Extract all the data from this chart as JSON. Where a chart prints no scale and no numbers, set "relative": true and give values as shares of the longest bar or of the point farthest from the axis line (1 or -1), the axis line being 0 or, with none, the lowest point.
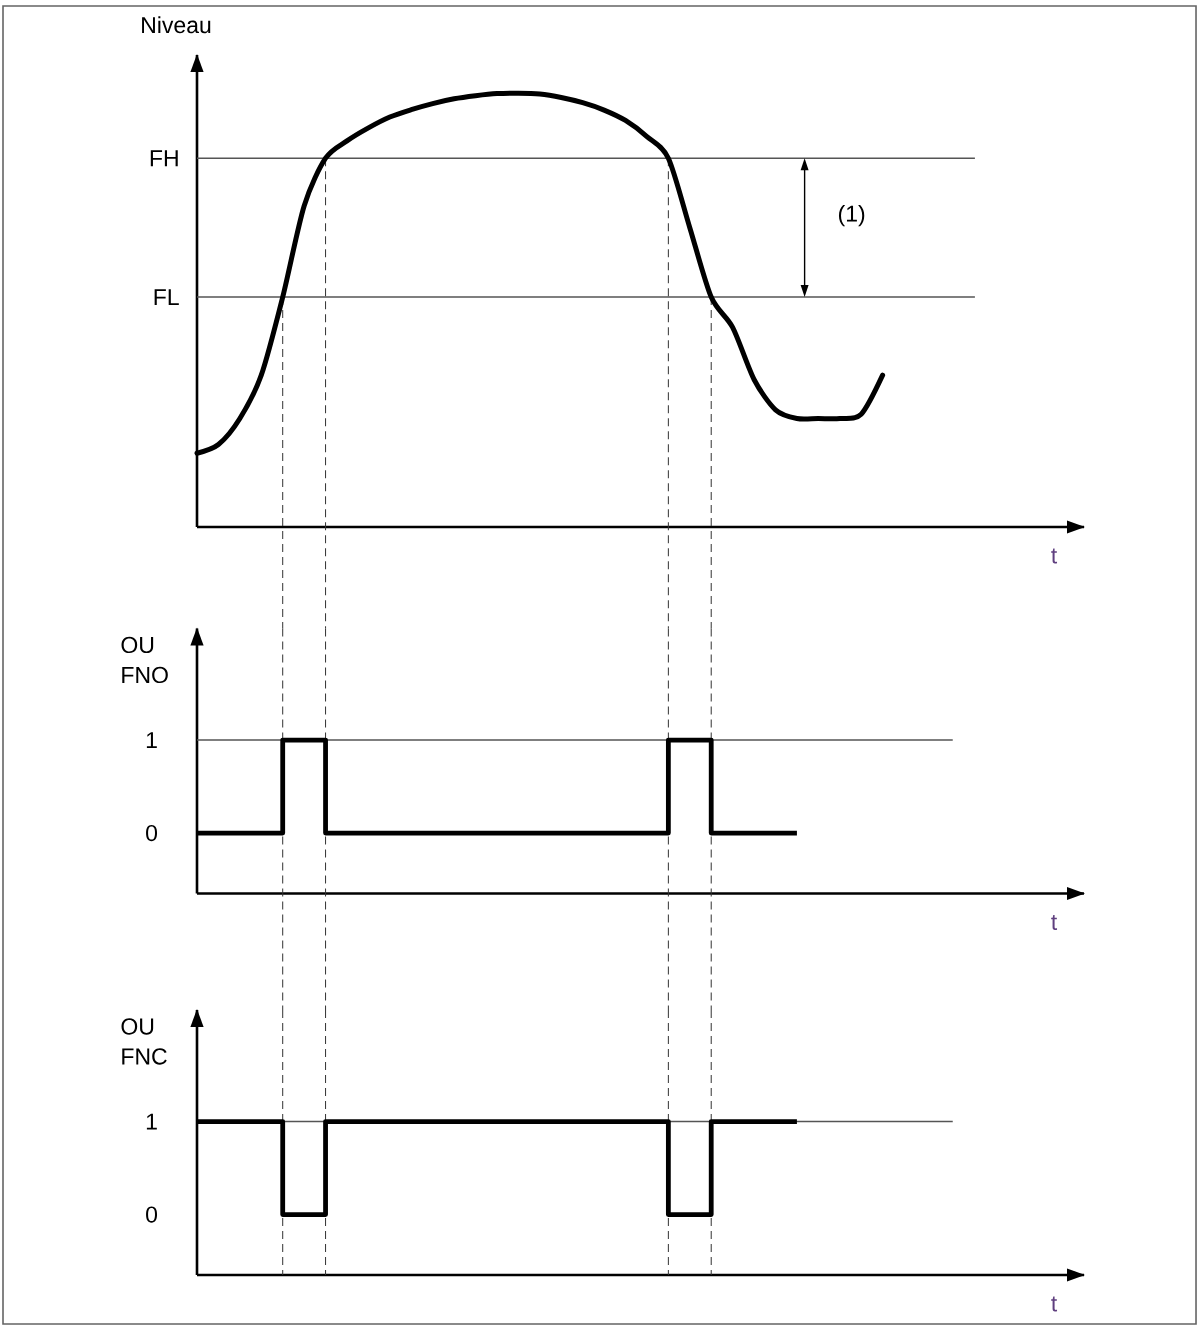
{
  "chart_data": [
    {
      "type": "line",
      "ylabel": "Niveau",
      "xlabel": "t",
      "relative": true,
      "color": "#000000",
      "grid": "x",
      "categories": [
        null,
        null,
        null,
        null,
        null,
        null,
        null,
        null,
        null,
        null,
        null,
        null,
        null,
        null,
        null,
        null,
        null,
        null,
        null,
        null,
        null,
        null,
        null,
        null,
        null,
        null,
        null,
        null,
        null,
        null,
        null,
        null,
        null,
        null,
        null,
        null,
        null,
        null,
        null,
        null,
        null,
        null
      ],
      "values": [
        0.17,
        0.19,
        0.25,
        0.35,
        0.53,
        0.74,
        0.85,
        0.89,
        0.92,
        0.945,
        0.962,
        0.976,
        0.987,
        0.994,
        0.999,
        1.0,
        0.998,
        0.99,
        0.978,
        0.961,
        0.937,
        0.9,
        0.85,
        0.69,
        0.53,
        0.46,
        0.34,
        0.27,
        0.25,
        0.25,
        0.25,
        0.26,
        0.35,
        null,
        null,
        null,
        null,
        null,
        null,
        null,
        null,
        null
      ],
      "ref_lines": [
        {
          "axis": "y",
          "value": 0.85,
          "label": "FH",
          "color": "#555555"
        },
        {
          "axis": "y",
          "value": 0.53,
          "label": "FL",
          "color": "#555555"
        }
      ],
      "annotations": [
        "(1)"
      ]
    },
    {
      "type": "step",
      "ylabel": "OU FNO",
      "xlabel": "t",
      "color": "#000000",
      "ylim": [
        -0.65,
        2.2
      ],
      "yticks": [
        0,
        1
      ],
      "grid": "x",
      "categories": [
        null,
        null,
        null,
        null,
        null,
        null,
        null,
        null,
        null,
        null,
        null,
        null,
        null,
        null,
        null,
        null,
        null,
        null,
        null,
        null,
        null,
        null,
        null,
        null,
        null,
        null,
        null,
        null,
        null,
        null,
        null,
        null,
        null,
        null,
        null,
        null,
        null,
        null,
        null,
        null,
        null,
        null
      ],
      "values": [
        0,
        0,
        0,
        0,
        1,
        1,
        0,
        0,
        0,
        0,
        0,
        0,
        0,
        0,
        0,
        0,
        0,
        0,
        0,
        0,
        0,
        0,
        1,
        1,
        0,
        0,
        0,
        0,
        0,
        null,
        null,
        null,
        null,
        null,
        null,
        null,
        null,
        null,
        null,
        null,
        null,
        null
      ],
      "ref_lines": [
        {
          "axis": "y",
          "value": 1,
          "color": "#555555"
        }
      ]
    },
    {
      "type": "step",
      "ylabel": "OU FNC",
      "xlabel": "t",
      "color": "#000000",
      "ylim": [
        -0.65,
        2.2
      ],
      "yticks": [
        0,
        1
      ],
      "grid": "x",
      "categories": [
        null,
        null,
        null,
        null,
        null,
        null,
        null,
        null,
        null,
        null,
        null,
        null,
        null,
        null,
        null,
        null,
        null,
        null,
        null,
        null,
        null,
        null,
        null,
        null,
        null,
        null,
        null,
        null,
        null,
        null,
        null,
        null,
        null,
        null,
        null,
        null,
        null,
        null,
        null,
        null,
        null,
        null
      ],
      "values": [
        1,
        1,
        1,
        1,
        0,
        0,
        1,
        1,
        1,
        1,
        1,
        1,
        1,
        1,
        1,
        1,
        1,
        1,
        1,
        1,
        1,
        1,
        0,
        0,
        1,
        1,
        1,
        1,
        1,
        null,
        null,
        null,
        null,
        null,
        null,
        null,
        null,
        null,
        null,
        null,
        null,
        null
      ],
      "ref_lines": [
        {
          "axis": "y",
          "value": 1,
          "color": "#555555"
        }
      ]
    }
  ]
}
